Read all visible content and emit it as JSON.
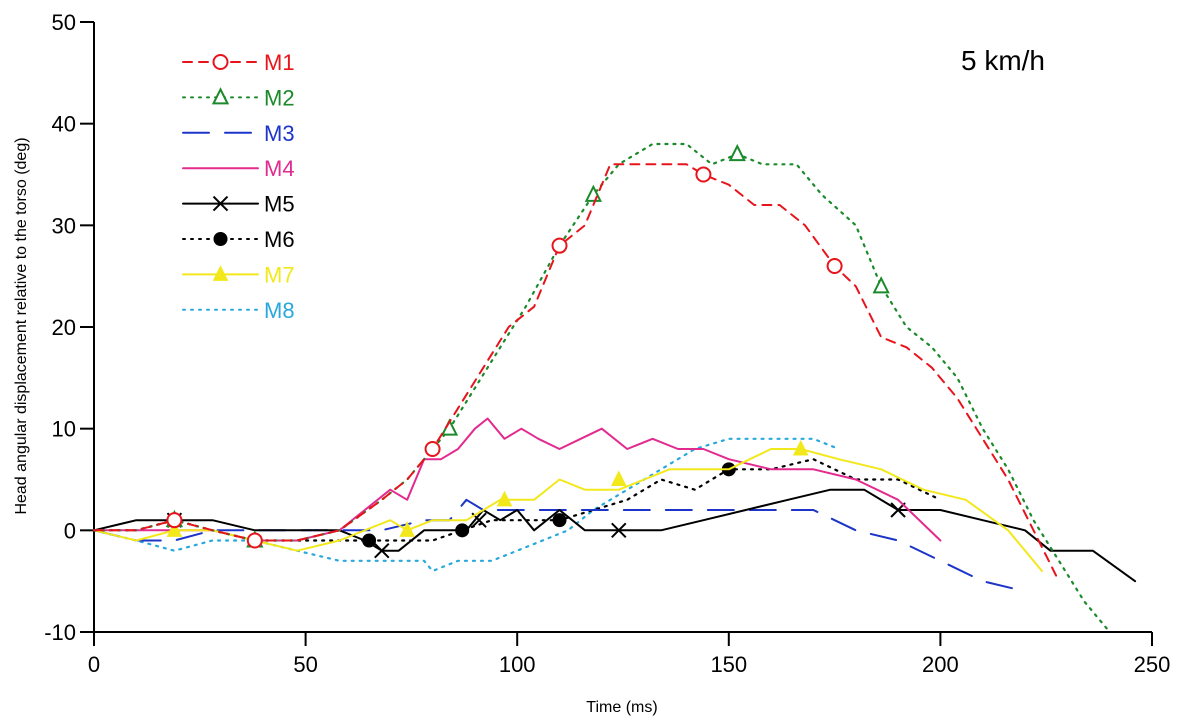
{
  "chart_data": {
    "type": "line",
    "title": "",
    "annotation": "5 km/h",
    "xlabel": "Time (ms)",
    "ylabel": "Head angular displacement relative to the torso (deg)",
    "xlim": [
      0,
      250
    ],
    "ylim": [
      -10,
      50
    ],
    "xticks": [
      0,
      50,
      100,
      150,
      200,
      250
    ],
    "yticks": [
      -10,
      0,
      10,
      20,
      30,
      40,
      50
    ],
    "xtick_labels": [
      "0",
      "50",
      "100",
      "150",
      "200",
      "250"
    ],
    "ytick_labels": [
      "-10",
      "0",
      "10",
      "20",
      "30",
      "40",
      "50"
    ],
    "grid": false,
    "legend_position": "top-left",
    "series": [
      {
        "name": "M1",
        "color": "#e8141c",
        "dash": "dashed",
        "marker": "circle-open",
        "x": [
          0,
          10,
          19,
          28,
          38,
          48,
          58,
          68,
          74,
          80,
          86,
          92,
          98,
          104,
          110,
          116,
          122,
          128,
          134,
          140,
          144,
          150,
          156,
          162,
          168,
          175,
          180,
          186,
          192,
          198,
          204,
          210,
          216,
          222,
          228
        ],
        "y": [
          0,
          0,
          1,
          0,
          -1,
          -1,
          0,
          3,
          5,
          8,
          12,
          16,
          20,
          22,
          28,
          30,
          36,
          36,
          36,
          36,
          35,
          34,
          32,
          32,
          30,
          26,
          24,
          19,
          18,
          16,
          13,
          9,
          5,
          0,
          -5
        ],
        "markers_x": [
          19,
          38,
          80,
          110,
          144,
          175
        ],
        "markers_y": [
          1,
          -1,
          8,
          28,
          35,
          26
        ]
      },
      {
        "name": "M2",
        "color": "#1a8a2a",
        "dash": "dotted",
        "marker": "triangle-open",
        "x": [
          0,
          10,
          19,
          28,
          38,
          48,
          58,
          68,
          74,
          80,
          84,
          90,
          96,
          102,
          110,
          118,
          124,
          132,
          140,
          146,
          152,
          158,
          166,
          172,
          180,
          186,
          192,
          198,
          204,
          210,
          216,
          222,
          228,
          234,
          240
        ],
        "y": [
          0,
          0,
          1,
          0,
          -1,
          -1,
          0,
          3,
          5,
          8,
          10,
          14,
          18,
          22,
          28,
          33,
          36,
          38,
          38,
          36,
          37,
          36,
          36,
          33,
          30,
          24,
          20,
          18,
          15,
          10,
          6,
          1,
          -3,
          -7,
          -10
        ],
        "markers_x": [
          19,
          38,
          84,
          118,
          152,
          186
        ],
        "markers_y": [
          1,
          -1,
          10,
          33,
          37,
          24
        ]
      },
      {
        "name": "M3",
        "color": "#1c35c8",
        "dash": "longdash",
        "marker": "none",
        "x": [
          0,
          10,
          19,
          28,
          38,
          48,
          58,
          68,
          78,
          84,
          88,
          92,
          100,
          110,
          120,
          130,
          140,
          150,
          160,
          170,
          180,
          190,
          200,
          210,
          220
        ],
        "y": [
          0,
          -1,
          -1,
          0,
          0,
          0,
          0,
          0,
          1,
          1,
          3,
          2,
          2,
          2,
          2,
          2,
          2,
          2,
          2,
          2,
          0,
          -1,
          -3,
          -5,
          -6
        ]
      },
      {
        "name": "M4",
        "color": "#e22a8f",
        "dash": "solid",
        "marker": "none",
        "x": [
          0,
          10,
          19,
          28,
          38,
          48,
          58,
          64,
          70,
          74,
          78,
          82,
          86,
          90,
          93,
          97,
          101,
          105,
          110,
          115,
          120,
          126,
          132,
          138,
          144,
          150,
          160,
          170,
          180,
          190,
          200
        ],
        "y": [
          0,
          0,
          0,
          0,
          -1,
          -1,
          0,
          2,
          4,
          3,
          7,
          7,
          8,
          10,
          11,
          9,
          10,
          9,
          8,
          9,
          10,
          8,
          9,
          8,
          8,
          7,
          6,
          6,
          5,
          3,
          -1
        ]
      },
      {
        "name": "M5",
        "color": "#000000",
        "dash": "solid",
        "marker": "x",
        "x": [
          0,
          10,
          19,
          28,
          38,
          48,
          58,
          64,
          68,
          72,
          78,
          84,
          88,
          92,
          96,
          100,
          104,
          110,
          116,
          124,
          134,
          144,
          154,
          164,
          174,
          182,
          190,
          200,
          210,
          220,
          226,
          236,
          246
        ],
        "y": [
          0,
          1,
          1,
          1,
          0,
          0,
          0,
          -1,
          -2,
          -2,
          0,
          0,
          0,
          2,
          1,
          2,
          0,
          2,
          0,
          0,
          0,
          1,
          2,
          3,
          4,
          4,
          2,
          2,
          1,
          0,
          -2,
          -2,
          -5
        ],
        "markers_x": [
          19,
          68,
          91,
          124,
          190
        ],
        "markers_y": [
          1,
          -2,
          1,
          0,
          2
        ]
      },
      {
        "name": "M6",
        "color": "#000000",
        "dash": "dotted",
        "marker": "circle-filled",
        "x": [
          0,
          10,
          19,
          28,
          38,
          48,
          58,
          65,
          72,
          80,
          87,
          94,
          102,
          110,
          118,
          126,
          134,
          142,
          150,
          160,
          170,
          180,
          190,
          200
        ],
        "y": [
          0,
          0,
          1,
          0,
          -1,
          -1,
          -1,
          -1,
          -1,
          -1,
          0,
          1,
          1,
          1,
          2,
          3,
          5,
          4,
          6,
          6,
          7,
          5,
          5,
          3
        ],
        "markers_x": [
          19,
          65,
          87,
          110,
          150
        ],
        "markers_y": [
          1,
          -1,
          0,
          1,
          6
        ]
      },
      {
        "name": "M7",
        "color": "#f2e81c",
        "dash": "solid",
        "marker": "triangle-filled",
        "x": [
          0,
          10,
          19,
          28,
          38,
          48,
          58,
          70,
          74,
          80,
          88,
          96,
          104,
          110,
          116,
          124,
          130,
          136,
          144,
          150,
          160,
          167,
          176,
          186,
          196,
          206,
          216,
          224
        ],
        "y": [
          0,
          -1,
          0,
          0,
          -1,
          -2,
          -1,
          1,
          0,
          1,
          1,
          3,
          3,
          5,
          4,
          4,
          5,
          6,
          6,
          6,
          8,
          8,
          7,
          6,
          4,
          3,
          0,
          -4
        ],
        "markers_x": [
          19,
          74,
          97,
          124,
          167
        ],
        "markers_y": [
          0,
          0,
          3,
          5,
          8
        ]
      },
      {
        "name": "M8",
        "color": "#28a8dc",
        "dash": "dotted",
        "marker": "none",
        "x": [
          0,
          10,
          19,
          28,
          38,
          48,
          58,
          68,
          78,
          80,
          86,
          94,
          100,
          106,
          112,
          118,
          126,
          134,
          142,
          150,
          160,
          170,
          176
        ],
        "y": [
          0,
          -1,
          -2,
          -1,
          -1,
          -2,
          -3,
          -3,
          -3,
          -4,
          -3,
          -3,
          -2,
          -1,
          0,
          2,
          4,
          6,
          8,
          9,
          9,
          9,
          8
        ]
      }
    ]
  }
}
